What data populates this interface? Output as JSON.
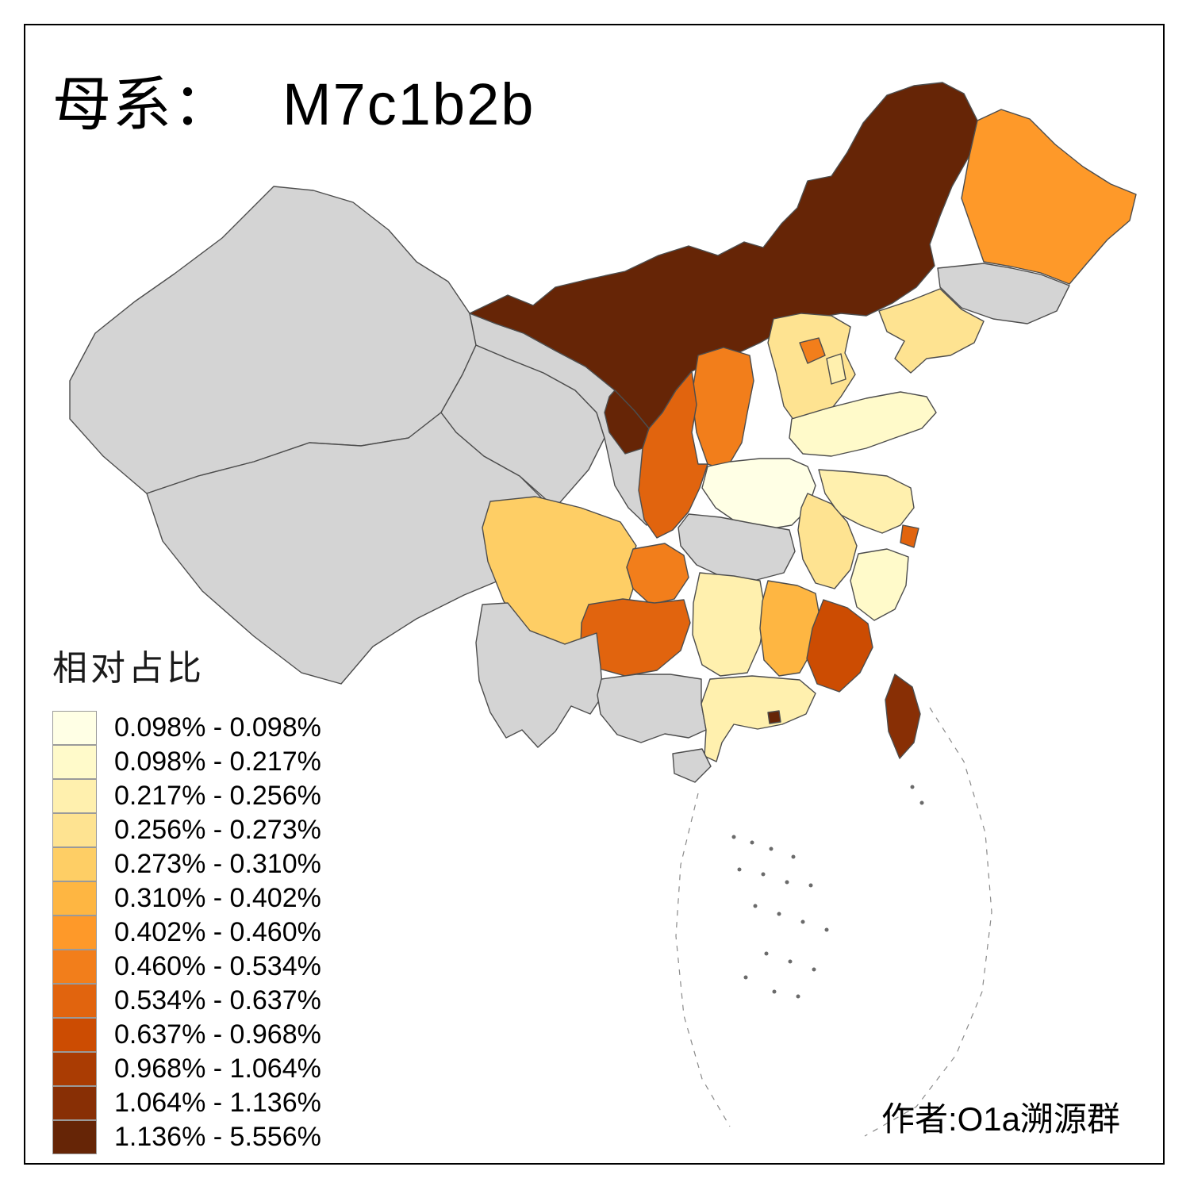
{
  "title": {
    "prefix": "母系：",
    "haplogroup": "M7c1b2b"
  },
  "attribution": "作者:O1a溯源群",
  "legend": {
    "title": "相对占比",
    "bins": [
      {
        "label": "0.098% - 0.098%",
        "color": "#FFFFE5"
      },
      {
        "label": "0.098% - 0.217%",
        "color": "#FFFACA"
      },
      {
        "label": "0.217% - 0.256%",
        "color": "#FFF0AE"
      },
      {
        "label": "0.256% - 0.273%",
        "color": "#FEE391"
      },
      {
        "label": "0.273% - 0.310%",
        "color": "#FECE65"
      },
      {
        "label": "0.310% - 0.402%",
        "color": "#FEB642"
      },
      {
        "label": "0.402% - 0.460%",
        "color": "#FE9929"
      },
      {
        "label": "0.460% - 0.534%",
        "color": "#F27E1B"
      },
      {
        "label": "0.534% - 0.637%",
        "color": "#E1640E"
      },
      {
        "label": "0.637% - 0.968%",
        "color": "#CC4C02"
      },
      {
        "label": "0.968% - 1.064%",
        "color": "#AA3C03"
      },
      {
        "label": "1.064% - 1.136%",
        "color": "#882F05"
      },
      {
        "label": "1.136% - 5.556%",
        "color": "#662506"
      }
    ]
  },
  "map": {
    "no_data_color": "#D4D4D4",
    "border_color": "#4D4D4D",
    "provinces": [
      {
        "id": "xinjiang",
        "name": "Xinjiang",
        "bin": null
      },
      {
        "id": "xizang",
        "name": "Tibet",
        "bin": null
      },
      {
        "id": "qinghai",
        "name": "Qinghai",
        "bin": null
      },
      {
        "id": "gansu",
        "name": "Gansu",
        "bin": null
      },
      {
        "id": "neimenggu",
        "name": "Inner Mongolia",
        "bin": 12
      },
      {
        "id": "ningxia",
        "name": "Ningxia",
        "bin": 12
      },
      {
        "id": "heilongjiang",
        "name": "Heilongjiang",
        "bin": 6
      },
      {
        "id": "jilin",
        "name": "Jilin",
        "bin": null
      },
      {
        "id": "liaoning",
        "name": "Liaoning",
        "bin": 3
      },
      {
        "id": "beijing",
        "name": "Beijing",
        "bin": 7
      },
      {
        "id": "tianjin",
        "name": "Tianjin",
        "bin": 2
      },
      {
        "id": "hebei",
        "name": "Hebei",
        "bin": 3
      },
      {
        "id": "shanxi",
        "name": "Shanxi",
        "bin": 7
      },
      {
        "id": "shaanxi",
        "name": "Shaanxi",
        "bin": 8
      },
      {
        "id": "shandong",
        "name": "Shandong",
        "bin": 1
      },
      {
        "id": "henan",
        "name": "Henan",
        "bin": 0
      },
      {
        "id": "jiangsu",
        "name": "Jiangsu",
        "bin": 2
      },
      {
        "id": "anhui",
        "name": "Anhui",
        "bin": 3
      },
      {
        "id": "shanghai",
        "name": "Shanghai",
        "bin": 8
      },
      {
        "id": "zhejiang",
        "name": "Zhejiang",
        "bin": 1
      },
      {
        "id": "hubei",
        "name": "Hubei",
        "bin": null
      },
      {
        "id": "chongqing",
        "name": "Chongqing",
        "bin": 7
      },
      {
        "id": "sichuan",
        "name": "Sichuan",
        "bin": 4
      },
      {
        "id": "guizhou",
        "name": "Guizhou",
        "bin": 8
      },
      {
        "id": "hunan",
        "name": "Hunan",
        "bin": 2
      },
      {
        "id": "jiangxi",
        "name": "Jiangxi",
        "bin": 5
      },
      {
        "id": "fujian",
        "name": "Fujian",
        "bin": 9
      },
      {
        "id": "taiwan",
        "name": "Taiwan",
        "bin": 11
      },
      {
        "id": "guangdong",
        "name": "Guangdong",
        "bin": 2
      },
      {
        "id": "hongkong",
        "name": "Hong Kong",
        "bin": 12
      },
      {
        "id": "guangxi",
        "name": "Guangxi",
        "bin": null
      },
      {
        "id": "yunnan",
        "name": "Yunnan",
        "bin": null
      },
      {
        "id": "hainan",
        "name": "Hainan",
        "bin": null
      }
    ]
  }
}
